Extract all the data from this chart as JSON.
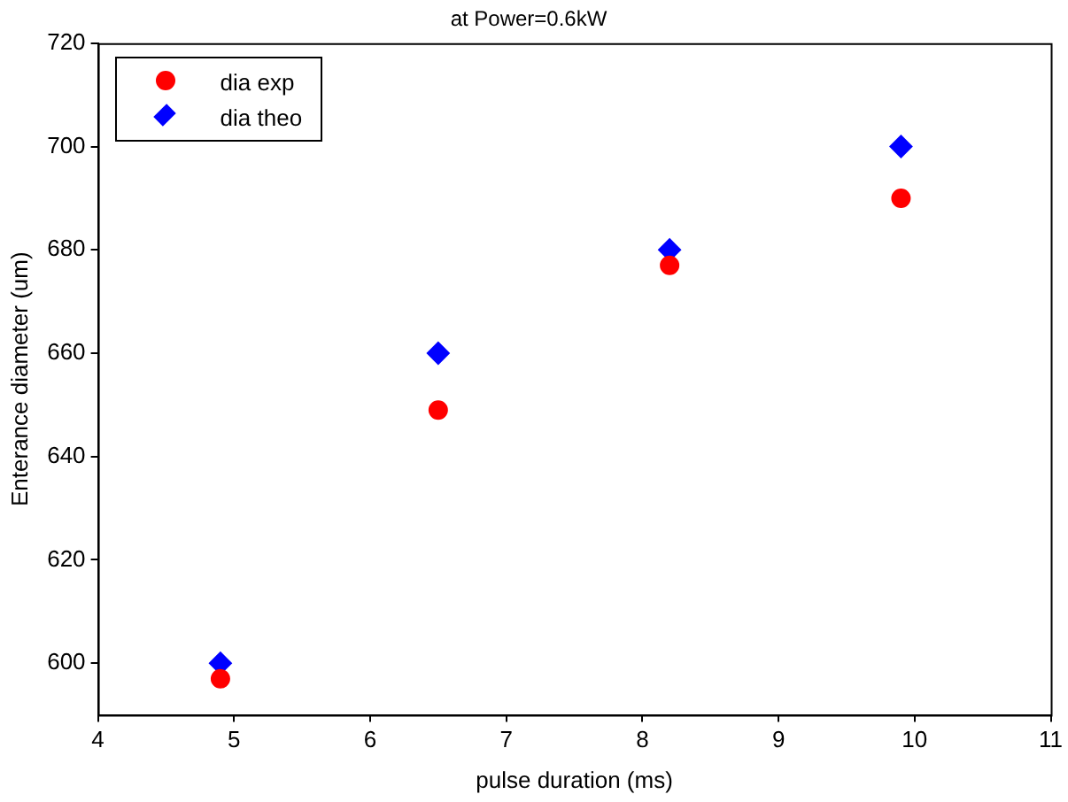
{
  "chart_data": {
    "type": "scatter",
    "title": "at Power=0.6kW",
    "xlabel": "pulse duration (ms)",
    "ylabel": "Enterance diameter (um)",
    "x": [
      4.9,
      6.5,
      8.2,
      9.9
    ],
    "series": [
      {
        "name": "dia exp",
        "color": "#ff0000",
        "marker": "circle",
        "values": [
          597,
          649,
          677,
          690
        ]
      },
      {
        "name": "dia theo",
        "color": "#0000ff",
        "marker": "diamond",
        "values": [
          600,
          660,
          680,
          700
        ]
      }
    ],
    "xlim": [
      4,
      11
    ],
    "xticks": [
      4,
      5,
      6,
      7,
      8,
      9,
      10,
      11
    ],
    "ylim": [
      590,
      720
    ],
    "yticks": [
      600,
      620,
      640,
      660,
      680,
      700,
      720
    ],
    "grid": false,
    "legend": "top left"
  }
}
